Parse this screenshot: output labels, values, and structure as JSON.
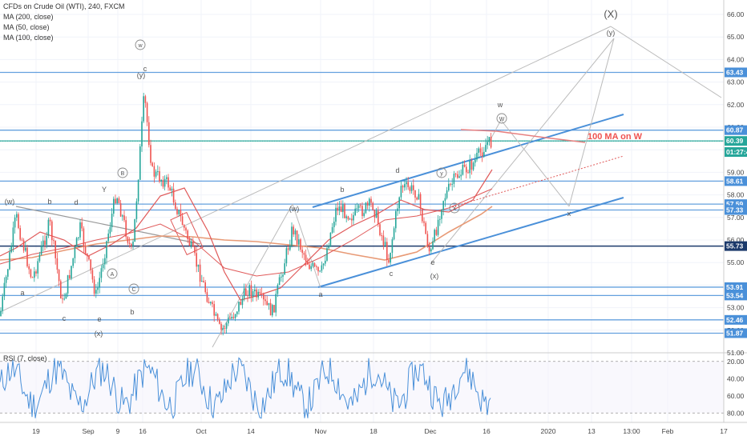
{
  "chart_data": {
    "type": "line",
    "title": "CFDs on Crude Oil (WTI), 240, FXCM",
    "indicators": [
      "MA (200, close)",
      "MA (50, close)",
      "MA (100, close)"
    ],
    "ylim": [
      50.5,
      66.2
    ],
    "price_ticks": [
      51.0,
      52.0,
      53.0,
      54.0,
      55.0,
      56.0,
      57.0,
      58.0,
      59.0,
      60.0,
      61.0,
      62.0,
      63.0,
      64.0,
      65.0,
      66.0
    ],
    "x_ticks": [
      "19",
      "Sep",
      "9",
      "16",
      "Oct",
      "14",
      "Nov",
      "18",
      "Dec",
      "16",
      "2020",
      "13",
      "13:00",
      "Feb",
      "17"
    ],
    "price_tags": [
      {
        "value": 63.43,
        "label": "63.43",
        "color": "#4a90d9"
      },
      {
        "value": 60.87,
        "label": "60.87",
        "color": "#4a90d9"
      },
      {
        "value": 60.39,
        "label": "60.39",
        "color": "#26a69a"
      },
      {
        "value": 59.9,
        "label": "01:27:43",
        "color": "#26a69a"
      },
      {
        "value": 58.61,
        "label": "58.61",
        "color": "#4a90d9"
      },
      {
        "value": 57.59,
        "label": "57.59",
        "color": "#4a90d9"
      },
      {
        "value": 57.33,
        "label": "57.33",
        "color": "#4a90d9"
      },
      {
        "value": 55.73,
        "label": "55.73",
        "color": "#1c3a6b"
      },
      {
        "value": 53.91,
        "label": "53.91",
        "color": "#4a90d9"
      },
      {
        "value": 53.54,
        "label": "53.54",
        "color": "#4a90d9"
      },
      {
        "value": 52.46,
        "label": "52.46",
        "color": "#4a90d9"
      },
      {
        "value": 51.87,
        "label": "51.87",
        "color": "#4a90d9"
      }
    ],
    "annotation": "100 MA on W",
    "wave_labels": [
      "(X)",
      "(y)",
      "w",
      "(y)",
      "c",
      "(w)",
      "b",
      "d",
      "a",
      "c",
      "e",
      "(x)",
      "b",
      "A",
      "C",
      "B",
      "(w)",
      "b",
      "d",
      "a",
      "c",
      "e",
      "(x)",
      "w",
      "y",
      "x",
      "W",
      "X",
      "Y"
    ],
    "rsi": {
      "title": "RSI (7, close)",
      "ylim": [
        10,
        90
      ],
      "ticks": [
        20.0,
        40.0,
        60.0,
        80.0
      ],
      "labels": [
        "80.00",
        "60.00",
        "40.00",
        "20.00"
      ]
    },
    "colors": {
      "up": "#26a69a",
      "down": "#ef5350",
      "level": "#4a90d9",
      "rsi": "#4a90d9",
      "ma200": "#e89a76",
      "ma50": "#e05a5a",
      "ma100": "#f0a090"
    }
  }
}
